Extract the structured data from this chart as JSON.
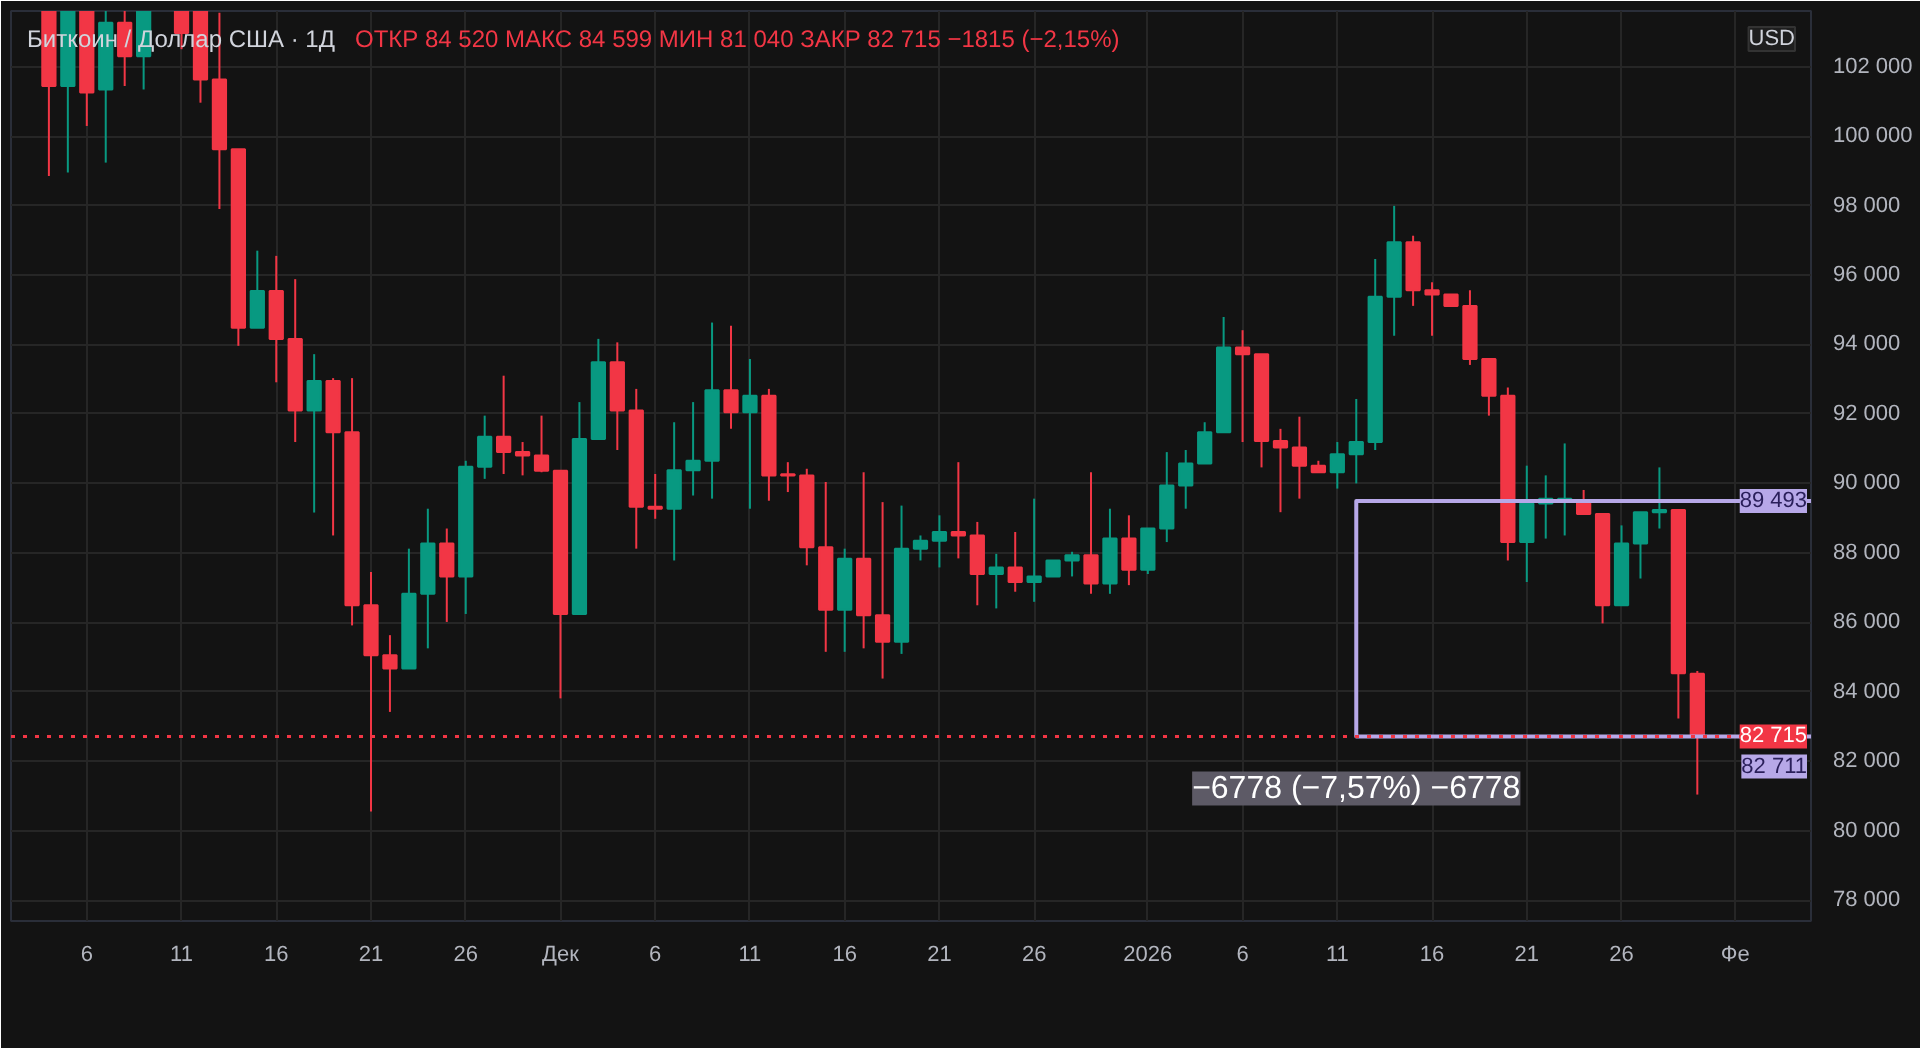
{
  "chart_data": {
    "type": "candlestick",
    "title": "Биткоин / Доллар США · 1Д",
    "subtitle": "ОТКР 84 520  МАКС 84 599  МИН 81 040  ЗАКР 82 715  −1815 (−2,15%)",
    "annotations": [
      "USD",
      {
        "text": "−6778 (−7,57%) −6778",
        "x": "2026-01-12",
        "y": 82711
      }
    ],
    "series": [
      {
        "type": "line",
        "color": "#b7a8e8",
        "x": [
          "2026-02-05",
          "2026-01-12",
          "2026-01-12",
          "2026-02-05"
        ],
        "values": [
          89493,
          89493,
          82711,
          82711
        ],
        "value_labels": [
          "89 493",
          null,
          null,
          "82 711"
        ]
      }
    ],
    "x": [
      "2025-11-04",
      "2025-11-05",
      "2025-11-06",
      "2025-11-07",
      "2025-11-08",
      "2025-11-09",
      "2025-11-11",
      "2025-11-12",
      "2025-11-13",
      "2025-11-14",
      "2025-11-15",
      "2025-11-16",
      "2025-11-17",
      "2025-11-18",
      "2025-11-19",
      "2025-11-20",
      "2025-11-21",
      "2025-11-22",
      "2025-11-23",
      "2025-11-24",
      "2025-11-25",
      "2025-11-26",
      "2025-11-27",
      "2025-11-28",
      "2025-11-29",
      "2025-11-30",
      "2025-12-01",
      "2025-12-02",
      "2025-12-03",
      "2025-12-04",
      "2025-12-05",
      "2025-12-06",
      "2025-12-07",
      "2025-12-08",
      "2025-12-09",
      "2025-12-10",
      "2025-12-11",
      "2025-12-12",
      "2025-12-13",
      "2025-12-14",
      "2025-12-15",
      "2025-12-16",
      "2025-12-17",
      "2025-12-18",
      "2025-12-19",
      "2025-12-20",
      "2025-12-21",
      "2025-12-22",
      "2025-12-23",
      "2025-12-24",
      "2025-12-25",
      "2025-12-26",
      "2025-12-27",
      "2025-12-28",
      "2025-12-29",
      "2025-12-30",
      "2025-12-31",
      "2026-01-01",
      "2026-01-02",
      "2026-01-03",
      "2026-01-04",
      "2026-01-05",
      "2026-01-06",
      "2026-01-07",
      "2026-01-08",
      "2026-01-09",
      "2026-01-10",
      "2026-01-11",
      "2026-01-12",
      "2026-01-13",
      "2026-01-14",
      "2026-01-15",
      "2026-01-16",
      "2026-01-17",
      "2026-01-18",
      "2026-01-19",
      "2026-01-20",
      "2026-01-21",
      "2026-01-22",
      "2026-01-23",
      "2026-01-24",
      "2026-01-25",
      "2026-01-26",
      "2026-01-27",
      "2026-01-28",
      "2026-01-29",
      "2026-01-30"
    ],
    "ohlc": [
      [
        103600,
        103600,
        98850,
        101440
      ],
      [
        101440,
        103600,
        98950,
        103600
      ],
      [
        103600,
        103600,
        100290,
        101250
      ],
      [
        101340,
        103600,
        99235,
        103260
      ],
      [
        103260,
        103600,
        101440,
        102300
      ],
      [
        102300,
        103600,
        101340,
        103600
      ],
      [
        103600,
        103600,
        102500,
        102970
      ],
      [
        103600,
        103600,
        100960,
        101630
      ],
      [
        101630,
        103550,
        97900,
        99620
      ],
      [
        99620,
        99620,
        93960,
        94480
      ],
      [
        94480,
        96700,
        94480,
        95540
      ],
      [
        95540,
        96550,
        92910,
        94160
      ],
      [
        94160,
        95880,
        91190,
        92100
      ],
      [
        92100,
        93720,
        89160,
        92950
      ],
      [
        92950,
        93030,
        88500,
        91470
      ],
      [
        91470,
        93030,
        85910,
        86490
      ],
      [
        86490,
        87450,
        80550,
        85050
      ],
      [
        85050,
        85630,
        83420,
        84670
      ],
      [
        84670,
        88120,
        84670,
        86820
      ],
      [
        86820,
        89270,
        85250,
        88270
      ],
      [
        88270,
        88700,
        86010,
        87320
      ],
      [
        87320,
        90650,
        86240,
        90480
      ],
      [
        90480,
        91950,
        90130,
        91340
      ],
      [
        91340,
        93100,
        90270,
        90900
      ],
      [
        90900,
        91190,
        90230,
        90800
      ],
      [
        90800,
        91950,
        90320,
        90360
      ],
      [
        90360,
        90360,
        83810,
        86240
      ],
      [
        86240,
        92340,
        86240,
        91280
      ],
      [
        91280,
        94160,
        91280,
        93490
      ],
      [
        93490,
        94060,
        90960,
        92100
      ],
      [
        92100,
        92720,
        88120,
        89330
      ],
      [
        89330,
        90270,
        88980,
        89270
      ],
      [
        89270,
        91760,
        87780,
        90380
      ],
      [
        90380,
        92340,
        89650,
        90650
      ],
      [
        90650,
        94630,
        89560,
        92680
      ],
      [
        92680,
        94540,
        91570,
        92050
      ],
      [
        92050,
        93580,
        89270,
        92520
      ],
      [
        92520,
        92720,
        89500,
        90230
      ],
      [
        90260,
        90610,
        89750,
        90230
      ],
      [
        90230,
        90420,
        87640,
        88160
      ],
      [
        88160,
        90040,
        85150,
        86360
      ],
      [
        86360,
        88120,
        85150,
        87830
      ],
      [
        87830,
        90320,
        85250,
        86200
      ],
      [
        86200,
        89460,
        84380,
        85440
      ],
      [
        85440,
        89360,
        85090,
        88120
      ],
      [
        88120,
        88500,
        87780,
        88350
      ],
      [
        88350,
        89080,
        87580,
        88600
      ],
      [
        88600,
        90610,
        87840,
        88500
      ],
      [
        88500,
        88890,
        86490,
        87390
      ],
      [
        87390,
        87970,
        86400,
        87580
      ],
      [
        87580,
        88600,
        86880,
        87160
      ],
      [
        87160,
        89560,
        86590,
        87320
      ],
      [
        87320,
        87780,
        87320,
        87780
      ],
      [
        87780,
        88030,
        87320,
        87930
      ],
      [
        87930,
        90320,
        86820,
        87120
      ],
      [
        87120,
        89270,
        86820,
        88410
      ],
      [
        88410,
        89080,
        87070,
        87510
      ],
      [
        87510,
        88700,
        87390,
        88700
      ],
      [
        88700,
        90900,
        88310,
        89940
      ],
      [
        89940,
        90960,
        89270,
        90570
      ],
      [
        90570,
        91760,
        90570,
        91470
      ],
      [
        91470,
        94790,
        91470,
        93910
      ],
      [
        93910,
        94410,
        91190,
        93720
      ],
      [
        93720,
        93720,
        90460,
        91220
      ],
      [
        91220,
        91570,
        89170,
        91030
      ],
      [
        91030,
        91920,
        89560,
        90510
      ],
      [
        90510,
        90650,
        90320,
        90320
      ],
      [
        90320,
        91190,
        89850,
        90840
      ],
      [
        90840,
        92430,
        90000,
        91190
      ],
      [
        91190,
        96460,
        90960,
        95370
      ],
      [
        95370,
        97990,
        94250,
        96940
      ],
      [
        96940,
        97130,
        95110,
        95560
      ],
      [
        95560,
        95790,
        94250,
        95440
      ],
      [
        95440,
        95440,
        95110,
        95110
      ],
      [
        95110,
        95560,
        93410,
        93580
      ],
      [
        93580,
        93580,
        91950,
        92520
      ],
      [
        92520,
        92760,
        87780,
        88310
      ],
      [
        88310,
        90510,
        87160,
        89420
      ],
      [
        89420,
        90230,
        88410,
        89560
      ],
      [
        89460,
        91150,
        88500,
        89560
      ],
      [
        89510,
        89810,
        89120,
        89120
      ],
      [
        89120,
        89120,
        85970,
        86490
      ],
      [
        86490,
        88790,
        86490,
        88270
      ],
      [
        88270,
        89170,
        87260,
        89170
      ],
      [
        89170,
        90460,
        88700,
        89230
      ],
      [
        89230,
        89230,
        83230,
        84530
      ],
      [
        84520,
        84599,
        81040,
        82715
      ]
    ],
    "colors": [
      "#f23645",
      "#089981",
      "#f23645",
      "#089981",
      "#f23645",
      "#089981",
      "#f23645",
      "#f23645",
      "#f23645",
      "#f23645",
      "#089981",
      "#f23645",
      "#f23645",
      "#089981",
      "#f23645",
      "#f23645",
      "#f23645",
      "#f23645",
      "#089981",
      "#089981",
      "#f23645",
      "#089981",
      "#089981",
      "#f23645",
      "#f23645",
      "#f23645",
      "#f23645",
      "#089981",
      "#089981",
      "#f23645",
      "#f23645",
      "#f23645",
      "#089981",
      "#089981",
      "#089981",
      "#f23645",
      "#089981",
      "#f23645",
      "#f23645",
      "#f23645",
      "#f23645",
      "#089981",
      "#f23645",
      "#f23645",
      "#089981",
      "#089981",
      "#089981",
      "#f23645",
      "#f23645",
      "#089981",
      "#f23645",
      "#089981",
      "#089981",
      "#089981",
      "#f23645",
      "#089981",
      "#f23645",
      "#089981",
      "#089981",
      "#089981",
      "#089981",
      "#089981",
      "#f23645",
      "#f23645",
      "#f23645",
      "#f23645",
      "#f23645",
      "#089981",
      "#089981",
      "#089981",
      "#089981",
      "#f23645",
      "#f23645",
      "#f23645",
      "#f23645",
      "#f23645",
      "#f23645",
      "#089981",
      "#089981",
      "#089981",
      "#f23645",
      "#f23645",
      "#089981",
      "#089981",
      "#089981",
      "#f23645",
      "#f23645"
    ],
    "xlim": [
      "2025-11-02",
      "2026-02-05"
    ],
    "xticks": [
      {
        "value": "2025-11-06",
        "label": "6"
      },
      {
        "value": "2025-11-11",
        "label": "11"
      },
      {
        "value": "2025-11-16",
        "label": "16"
      },
      {
        "value": "2025-11-21",
        "label": "21"
      },
      {
        "value": "2025-11-26",
        "label": "26"
      },
      {
        "value": "2025-12-01",
        "label": "Дек"
      },
      {
        "value": "2025-12-06",
        "label": "6"
      },
      {
        "value": "2025-12-11",
        "label": "11"
      },
      {
        "value": "2025-12-16",
        "label": "16"
      },
      {
        "value": "2025-12-21",
        "label": "21"
      },
      {
        "value": "2025-12-26",
        "label": "26"
      },
      {
        "value": "2026-01-01",
        "label": "2026"
      },
      {
        "value": "2026-01-06",
        "label": "6"
      },
      {
        "value": "2026-01-11",
        "label": "11"
      },
      {
        "value": "2026-01-16",
        "label": "16"
      },
      {
        "value": "2026-01-21",
        "label": "21"
      },
      {
        "value": "2026-01-26",
        "label": "26"
      },
      {
        "value": "2026-02-01",
        "label": "Фе"
      }
    ],
    "ylim": [
      77400,
      103600
    ],
    "yticks": [
      {
        "value": 78000,
        "label": "78 000"
      },
      {
        "value": 80000,
        "label": "80 000"
      },
      {
        "value": 82000,
        "label": "82 000"
      },
      {
        "value": 84000,
        "label": "84 000"
      },
      {
        "value": 86000,
        "label": "86 000"
      },
      {
        "value": 88000,
        "label": "88 000"
      },
      {
        "value": 90000,
        "label": "90 000"
      },
      {
        "value": 92000,
        "label": "92 000"
      },
      {
        "value": 94000,
        "label": "94 000"
      },
      {
        "value": 96000,
        "label": "96 000"
      },
      {
        "value": 98000,
        "label": "98 000"
      },
      {
        "value": 100000,
        "label": "100 000"
      },
      {
        "value": 102000,
        "label": "102 000"
      }
    ],
    "ref_lines": [
      {
        "axis": "y",
        "value": 82715,
        "label": "82 715",
        "color": "#f23645",
        "line_style": "dotted"
      }
    ],
    "grid": true
  }
}
